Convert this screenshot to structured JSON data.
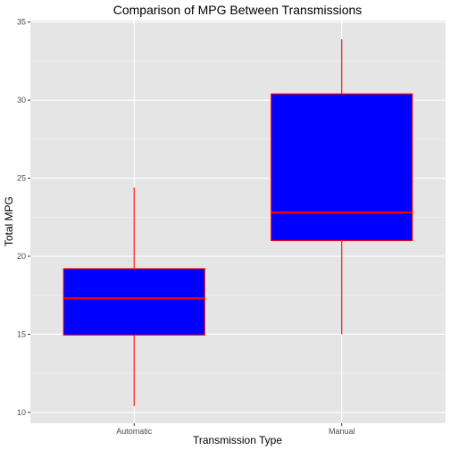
{
  "chart_data": {
    "type": "box",
    "title": "Comparison of MPG Between Transmissions",
    "xlabel": "Transmission Type",
    "ylabel": "Total MPG",
    "ylim": [
      9.3,
      35.1
    ],
    "yticks": [
      10,
      15,
      20,
      25,
      30,
      35
    ],
    "categories": [
      "Automatic",
      "Manual"
    ],
    "boxes": [
      {
        "category": "Automatic",
        "min": 10.4,
        "q1": 14.95,
        "median": 17.3,
        "q3": 19.2,
        "max": 24.4
      },
      {
        "category": "Manual",
        "min": 15.0,
        "q1": 21.0,
        "median": 22.8,
        "q3": 30.4,
        "max": 33.9
      }
    ],
    "grid": true,
    "colors": {
      "box_fill": "#0000ff",
      "box_outline": "#ff0000",
      "panel_background": "#e5e5e5",
      "grid_major": "#ffffff",
      "grid_minor": "#f2f2f2",
      "tick_label": "#4d4d4d"
    }
  }
}
